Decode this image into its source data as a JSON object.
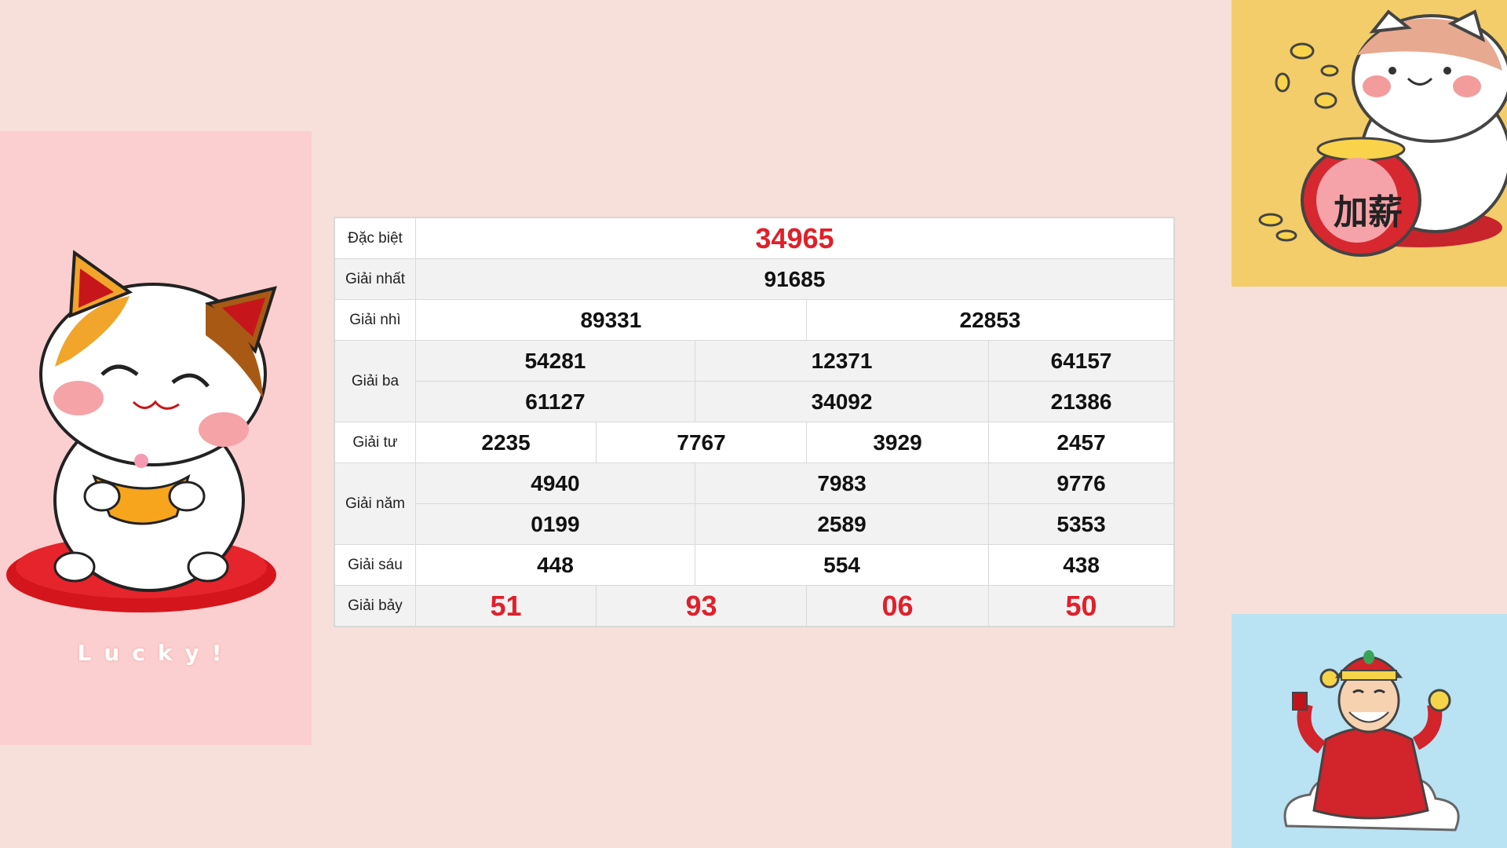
{
  "decor": {
    "lucky_text": "Lucky!",
    "badge_text": "加薪"
  },
  "table": {
    "rows": [
      {
        "label": "Đặc biệt",
        "values": [
          "34965"
        ]
      },
      {
        "label": "Giải nhất",
        "values": [
          "91685"
        ]
      },
      {
        "label": "Giải nhì",
        "values": [
          "89331",
          "22853"
        ]
      },
      {
        "label": "Giải ba",
        "values": [
          "54281",
          "12371",
          "64157",
          "61127",
          "34092",
          "21386"
        ]
      },
      {
        "label": "Giải tư",
        "values": [
          "2235",
          "7767",
          "3929",
          "2457"
        ]
      },
      {
        "label": "Giải năm",
        "values": [
          "4940",
          "7983",
          "9776",
          "0199",
          "2589",
          "5353"
        ]
      },
      {
        "label": "Giải sáu",
        "values": [
          "448",
          "554",
          "438"
        ]
      },
      {
        "label": "Giải bảy",
        "values": [
          "51",
          "93",
          "06",
          "50"
        ]
      }
    ]
  },
  "colors": {
    "highlight": "#e0202a",
    "background": "#f8e0da"
  }
}
